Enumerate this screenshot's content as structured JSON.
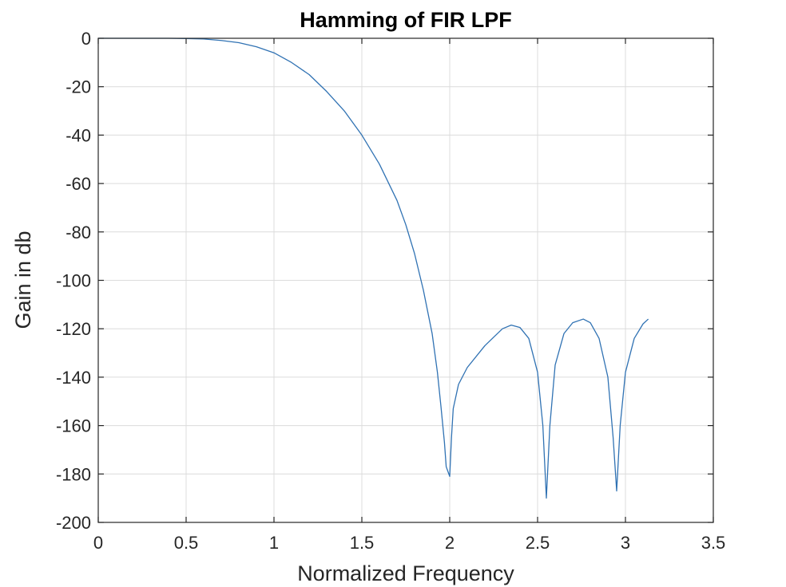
{
  "chart_data": {
    "type": "line",
    "title": "Hamming of FIR LPF",
    "xlabel": "Normalized Frequency",
    "ylabel": "Gain in db",
    "xlim": [
      0,
      3.5
    ],
    "ylim": [
      -200,
      0
    ],
    "xticks": [
      0,
      0.5,
      1,
      1.5,
      2,
      2.5,
      3,
      3.5
    ],
    "xtick_labels": [
      "0",
      "0.5",
      "1",
      "1.5",
      "2",
      "2.5",
      "3",
      "3.5"
    ],
    "yticks": [
      0,
      -20,
      -40,
      -60,
      -80,
      -100,
      -120,
      -140,
      -160,
      -180,
      -200
    ],
    "ytick_labels": [
      "0",
      "-20",
      "-40",
      "-60",
      "-80",
      "-100",
      "-120",
      "-140",
      "-160",
      "-180",
      "-200"
    ],
    "grid": true,
    "series": [
      {
        "color": "#3072b3",
        "x": [
          0,
          0.1,
          0.2,
          0.3,
          0.4,
          0.5,
          0.6,
          0.7,
          0.8,
          0.9,
          1.0,
          1.1,
          1.2,
          1.3,
          1.4,
          1.5,
          1.6,
          1.7,
          1.75,
          1.8,
          1.85,
          1.9,
          1.93,
          1.95,
          1.97,
          1.98,
          1.99,
          2.0,
          2.01,
          2.02,
          2.05,
          2.1,
          2.2,
          2.3,
          2.35,
          2.4,
          2.45,
          2.5,
          2.53,
          2.55,
          2.57,
          2.6,
          2.65,
          2.7,
          2.76,
          2.8,
          2.85,
          2.9,
          2.93,
          2.95,
          2.97,
          3.0,
          3.05,
          3.1,
          3.13
        ],
        "y": [
          0,
          0,
          0,
          0,
          0,
          -0.1,
          -0.3,
          -0.9,
          -1.8,
          -3.5,
          -6,
          -10,
          -15,
          -22,
          -30,
          -40,
          -52,
          -67,
          -77,
          -89,
          -104,
          -122,
          -138,
          -152,
          -167,
          -177,
          -179,
          -181,
          -165,
          -153,
          -143,
          -136,
          -127,
          -120,
          -118.5,
          -119.5,
          -124,
          -138,
          -160,
          -190,
          -160,
          -135,
          -122,
          -117.5,
          -116,
          -117.5,
          -124,
          -140,
          -165,
          -187,
          -160,
          -138,
          -124,
          -118,
          -116
        ]
      }
    ]
  }
}
